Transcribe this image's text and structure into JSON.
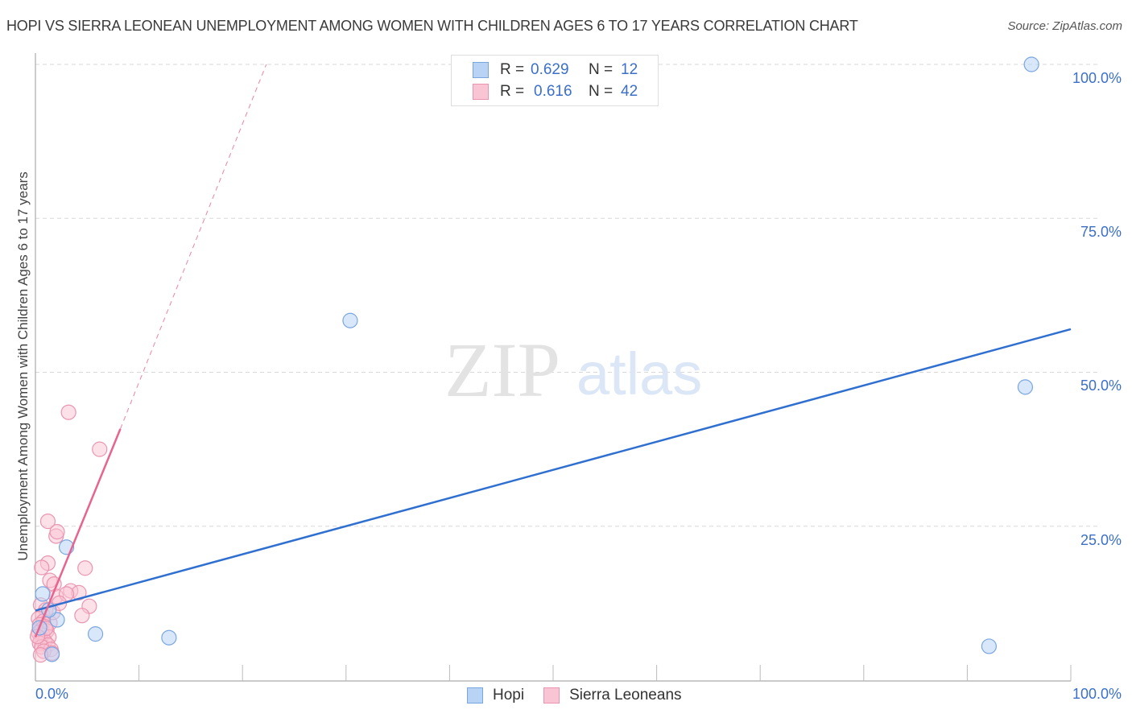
{
  "header": {
    "title": "HOPI VS SIERRA LEONEAN UNEMPLOYMENT AMONG WOMEN WITH CHILDREN AGES 6 TO 17 YEARS CORRELATION CHART",
    "source": "Source: ZipAtlas.com"
  },
  "legend": {
    "rows": [
      {
        "series": "Hopi",
        "r_label": "R =",
        "r_value": "0.629",
        "n_label": "N =",
        "n_value": "12",
        "fill": "#b9d3f5",
        "stroke": "#7aa6e0"
      },
      {
        "series": "Sierra Leoneans",
        "r_label": "R =",
        "r_value": "0.616",
        "n_label": "N =",
        "n_value": "42",
        "fill": "#f9c4d4",
        "stroke": "#ea94b0"
      }
    ]
  },
  "bottom_legend": [
    {
      "label": "Hopi",
      "fill": "#b9d3f5",
      "stroke": "#7aa6e0"
    },
    {
      "label": "Sierra Leoneans",
      "fill": "#f9c4d4",
      "stroke": "#ea94b0"
    }
  ],
  "axes": {
    "y_label": "Unemployment Among Women with Children Ages 6 to 17 years",
    "y_ticks": [
      "100.0%",
      "75.0%",
      "50.0%",
      "25.0%"
    ],
    "x_ticks": [
      "0.0%",
      "100.0%"
    ]
  },
  "watermark": {
    "zip": "ZIP",
    "atlas": "atlas"
  },
  "colors": {
    "hopi_line": "#2f6fd0",
    "sierra_line": "#e8648e",
    "tick_text": "#3b6fc9",
    "grid": "#d8d8d8"
  },
  "chart_data": {
    "type": "scatter",
    "title": "HOPI VS SIERRA LEONEAN UNEMPLOYMENT AMONG WOMEN WITH CHILDREN AGES 6 TO 17 YEARS CORRELATION CHART",
    "xlabel": "",
    "ylabel": "Unemployment Among Women with Children Ages 6 to 17 years",
    "xlim": [
      0,
      100
    ],
    "ylim": [
      0,
      100
    ],
    "x_tick_labels": [
      "0.0%",
      "100.0%"
    ],
    "y_tick_labels": [
      "25.0%",
      "50.0%",
      "75.0%",
      "100.0%"
    ],
    "grid": true,
    "legend_position": "top-center",
    "series": [
      {
        "name": "Hopi",
        "R": 0.629,
        "N": 12,
        "color": "#7aa6e0",
        "points": [
          [
            96.2,
            100.0
          ],
          [
            95.6,
            47.6
          ],
          [
            30.4,
            58.4
          ],
          [
            92.1,
            5.5
          ],
          [
            3.0,
            21.6
          ],
          [
            5.8,
            7.5
          ],
          [
            12.9,
            6.9
          ],
          [
            2.1,
            9.8
          ],
          [
            0.7,
            14.0
          ],
          [
            1.3,
            11.4
          ],
          [
            1.6,
            4.2
          ],
          [
            0.4,
            8.5
          ]
        ],
        "trendline": {
          "x0": 0,
          "y0": 11.3,
          "x1": 100,
          "y1": 57.0,
          "style": "solid"
        }
      },
      {
        "name": "Sierra Leoneans",
        "R": 0.616,
        "N": 42,
        "color": "#ea94b0",
        "points": [
          [
            3.2,
            43.5
          ],
          [
            6.2,
            37.5
          ],
          [
            1.2,
            25.8
          ],
          [
            2.0,
            23.4
          ],
          [
            2.1,
            24.1
          ],
          [
            1.2,
            19.0
          ],
          [
            0.6,
            18.3
          ],
          [
            4.8,
            18.2
          ],
          [
            1.4,
            16.2
          ],
          [
            1.8,
            15.6
          ],
          [
            3.4,
            14.5
          ],
          [
            4.2,
            14.2
          ],
          [
            2.0,
            13.6
          ],
          [
            3.0,
            14.0
          ],
          [
            5.2,
            12.0
          ],
          [
            0.5,
            12.2
          ],
          [
            1.0,
            11.4
          ],
          [
            0.7,
            10.6
          ],
          [
            4.5,
            10.5
          ],
          [
            0.3,
            10.0
          ],
          [
            0.8,
            9.6
          ],
          [
            1.4,
            9.3
          ],
          [
            0.4,
            9.0
          ],
          [
            0.9,
            8.7
          ],
          [
            0.6,
            8.2
          ],
          [
            1.1,
            8.0
          ],
          [
            0.3,
            7.7
          ],
          [
            0.7,
            7.3
          ],
          [
            1.3,
            7.0
          ],
          [
            0.5,
            6.7
          ],
          [
            0.9,
            6.3
          ],
          [
            0.4,
            6.0
          ],
          [
            1.2,
            5.7
          ],
          [
            0.6,
            5.4
          ],
          [
            1.5,
            5.0
          ],
          [
            0.8,
            4.7
          ],
          [
            1.6,
            4.4
          ],
          [
            0.5,
            4.1
          ],
          [
            1.0,
            8.4
          ],
          [
            1.7,
            11.0
          ],
          [
            2.3,
            12.5
          ],
          [
            0.2,
            7.1
          ]
        ],
        "trendline": {
          "x0": 0,
          "y0": 7.0,
          "x1": 8.2,
          "y1": 40.8,
          "style": "solid",
          "extension": {
            "x1": 22.3,
            "y1": 100,
            "style": "dashed"
          }
        }
      }
    ]
  }
}
